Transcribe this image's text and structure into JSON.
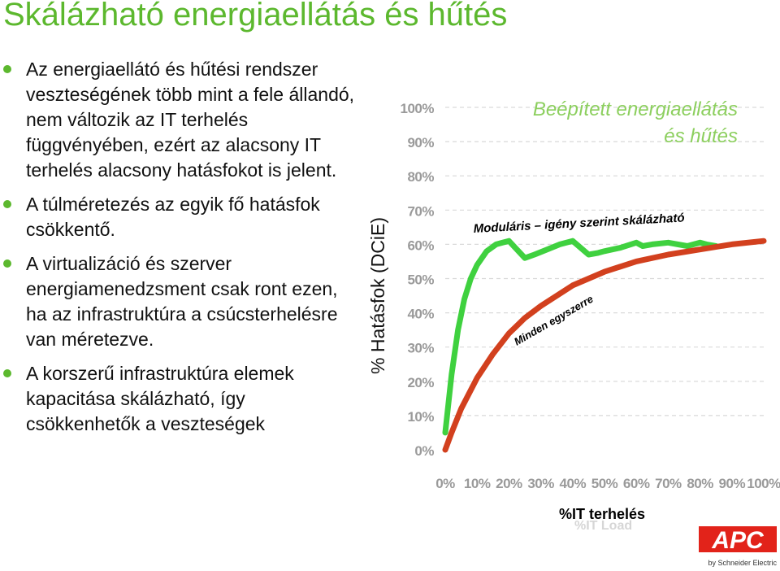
{
  "title": "Skálázható energiaellátás és hűtés",
  "bullets": [
    "Az energiaellátó és hűtési rendszer veszteségének több mint a fele állandó, nem változik az IT terhelés függvényében, ezért az alacsony IT terhelés alacsony hatásfokot is jelent.",
    "A túlméretezés az egyik fő hatásfok csökkentő.",
    "A virtualizáció és szerver energiamenedzsment csak ront ezen, ha az infrastruktúra a csúcsterhelésre van méretezve.",
    "A korszerű infrastruktúra elemek kapacitása skálázható, így csökkenhetők a veszteségek"
  ],
  "colors": {
    "accent_green": "#5cb82e",
    "curve_green": "#3fd13f",
    "curve_red": "#d2401e",
    "apc_red": "#e2231a"
  },
  "logo": {
    "brand": "APC",
    "tagline": "by Schneider Electric"
  },
  "chart_data": {
    "type": "line",
    "ylabel": "% Hatásfok (DCiE)",
    "xlabel": "%IT terhelés",
    "xlabel_ghost": "%IT Load",
    "x_ticks": [
      "0%",
      "10%",
      "20%",
      "30%",
      "40%",
      "50%",
      "60%",
      "70%",
      "80%",
      "90%",
      "100%"
    ],
    "y_ticks": [
      "0%",
      "10%",
      "20%",
      "30%",
      "40%",
      "50%",
      "60%",
      "70%",
      "80%",
      "90%",
      "100%"
    ],
    "xlim": [
      0,
      100
    ],
    "ylim": [
      0,
      100
    ],
    "grid": "horizontal dashed",
    "annotations": {
      "top_label": [
        "Beépített energiaellátás",
        "és hűtés"
      ],
      "modular_label": "Moduláris – igény szerint skálázható",
      "curve_label": "Minden egyszerre"
    },
    "series": [
      {
        "name": "Moduláris – igény szerint skálázható",
        "color": "#3fd13f",
        "x": [
          0,
          2,
          4,
          6,
          8,
          10,
          13,
          16,
          18,
          20,
          22,
          25,
          28,
          32,
          36,
          40,
          45,
          48,
          50,
          55,
          60,
          62,
          65,
          70,
          76,
          80,
          82,
          85
        ],
        "y": [
          5,
          22,
          35,
          44,
          50,
          54,
          58,
          60,
          60.5,
          61,
          59,
          56,
          57,
          58.5,
          60,
          61,
          57,
          57.5,
          58,
          59,
          60.5,
          59.5,
          60,
          60.5,
          59.5,
          60.5,
          60,
          59.5
        ]
      },
      {
        "name": "Minden egyszerre",
        "color": "#d2401e",
        "x": [
          0,
          2,
          5,
          10,
          15,
          20,
          25,
          30,
          40,
          50,
          60,
          70,
          80,
          90,
          100
        ],
        "y": [
          0,
          5,
          12,
          21,
          28,
          34,
          38.5,
          42,
          48,
          52,
          55,
          57,
          58.5,
          60,
          61
        ]
      }
    ]
  }
}
